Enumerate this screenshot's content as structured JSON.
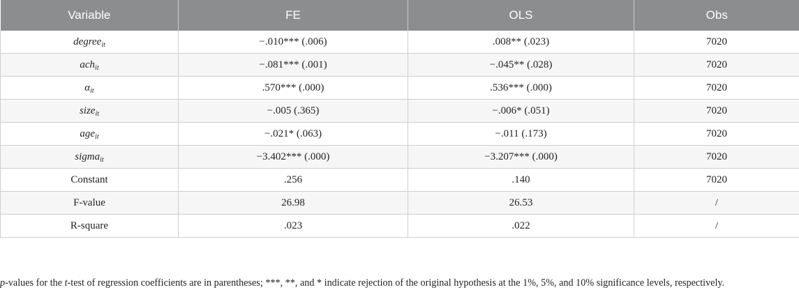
{
  "table": {
    "headers": [
      "Variable",
      "FE",
      "OLS",
      "Obs"
    ],
    "rows": [
      {
        "var_main": "degree",
        "var_sub": "it",
        "fe": "−.010*** (.006)",
        "ols": ".008** (.023)",
        "obs": "7020"
      },
      {
        "var_main": "ach",
        "var_sub": "it",
        "fe": "−.081*** (.001)",
        "ols": "−.045** (.028)",
        "obs": "7020"
      },
      {
        "var_main": "α",
        "var_sub": "it",
        "fe": ".570*** (.000)",
        "ols": ".536*** (.000)",
        "obs": "7020"
      },
      {
        "var_main": "size",
        "var_sub": "it",
        "fe": "−.005 (.365)",
        "ols": "−.006* (.051)",
        "obs": "7020"
      },
      {
        "var_main": "age",
        "var_sub": "it",
        "fe": "−.021* (.063)",
        "ols": "−.011 (.173)",
        "obs": "7020"
      },
      {
        "var_main": "sigma",
        "var_sub": "it",
        "fe": "−3.402*** (.000)",
        "ols": "−3.207*** (.000)",
        "obs": "7020"
      },
      {
        "var_main": "Constant",
        "var_sub": "",
        "fe": ".256",
        "ols": ".140",
        "obs": "7020"
      },
      {
        "var_main": "F-value",
        "var_sub": "",
        "fe": "26.98",
        "ols": "26.53",
        "obs": "/"
      },
      {
        "var_main": "R-square",
        "var_sub": "",
        "fe": ".023",
        "ols": ".022",
        "obs": "/"
      }
    ]
  },
  "note": {
    "p_italic": "p",
    "part1": "-values for the ",
    "t_italic": "t",
    "part2": "-test of regression coefficients are in parentheses; ***, **, and * indicate rejection of the original hypothesis at the 1%, 5%, and 10% significance levels, respectively."
  }
}
